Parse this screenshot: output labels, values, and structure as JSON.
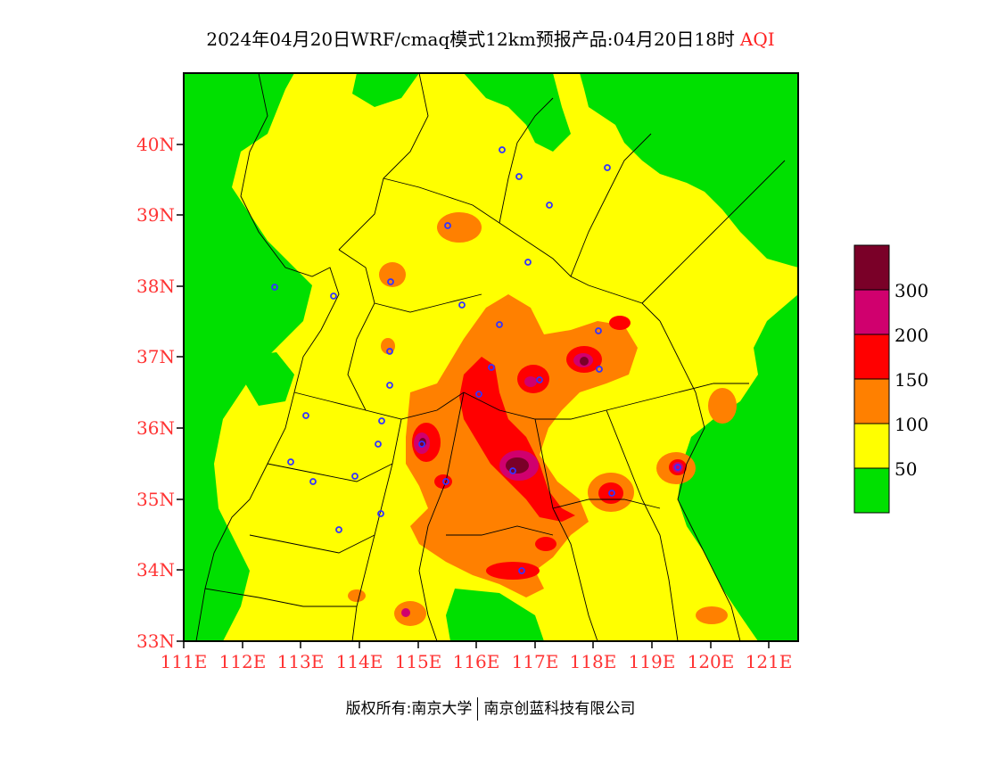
{
  "title": {
    "main": "2024年04月20日WRF/cmaq模式12km预报产品:04月20日18时",
    "variable": "AQI"
  },
  "axes": {
    "y_ticks": [
      "40N",
      "39N",
      "38N",
      "37N",
      "36N",
      "35N",
      "34N",
      "33N"
    ],
    "x_ticks": [
      "111E",
      "112E",
      "113E",
      "114E",
      "115E",
      "116E",
      "117E",
      "118E",
      "119E",
      "120E",
      "121E"
    ],
    "lon_range": [
      111,
      121.5
    ],
    "lat_range": [
      33,
      41
    ]
  },
  "colorbar": {
    "labels": [
      "300",
      "200",
      "150",
      "100",
      "50"
    ],
    "levels": [
      {
        "color": "#7a0028",
        "min": 300
      },
      {
        "color": "#d0006e",
        "min": 200
      },
      {
        "color": "#ff0000",
        "min": 150
      },
      {
        "color": "#ff8000",
        "min": 100
      },
      {
        "color": "#ffff00",
        "min": 50
      },
      {
        "color": "#00e000",
        "min": 0
      }
    ]
  },
  "copyright": {
    "left": "版权所有:南京大学",
    "right": "南京创蓝科技有限公司"
  },
  "colors": {
    "good": "#00e000",
    "moderate": "#ffff00",
    "usg": "#ff8000",
    "unhealthy": "#ff0000",
    "very_unhealthy": "#d0006e",
    "hazardous": "#7a0028",
    "axis_label": "#ff3333",
    "city_marker": "#3333ff"
  }
}
